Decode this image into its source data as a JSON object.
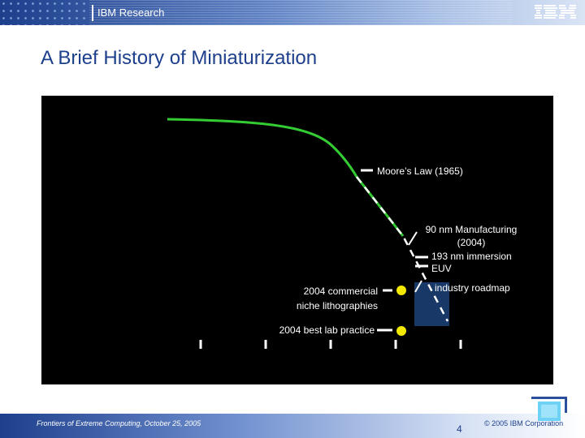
{
  "header": {
    "section_label": "IBM Research",
    "logo": "IBM"
  },
  "slide": {
    "title": "A Brief History of Miniaturization"
  },
  "chart_data": {
    "type": "line",
    "series": [
      {
        "name": "Moore's Law (1965)",
        "style": "solid-green"
      },
      {
        "name": "industry roadmap",
        "style": "dashed-white"
      }
    ],
    "annotations": {
      "moores_law": "Moore’s Law (1965)",
      "manufacturing_90nm_line1": "90 nm Manufacturing",
      "manufacturing_90nm_line2": "(2004)",
      "immersion_193nm_line1": "193 nm immersion",
      "immersion_193nm_line2": "EUV",
      "industry_roadmap": "industry roadmap",
      "commercial_niche_line1": "2004 commercial",
      "commercial_niche_line2": "niche lithographies",
      "best_lab_practice": "2004 best lab practice"
    },
    "colors": {
      "curve": "#33cc33",
      "roadmap": "#ffffff",
      "roadmap_box": "#1b3f73",
      "points": "#f2e800",
      "background": "#000000"
    }
  },
  "footer": {
    "left_text": "Frontiers of Extreme Computing, October 25, 2005",
    "page_number": "4",
    "copyright": "© 2005 IBM Corporation"
  }
}
